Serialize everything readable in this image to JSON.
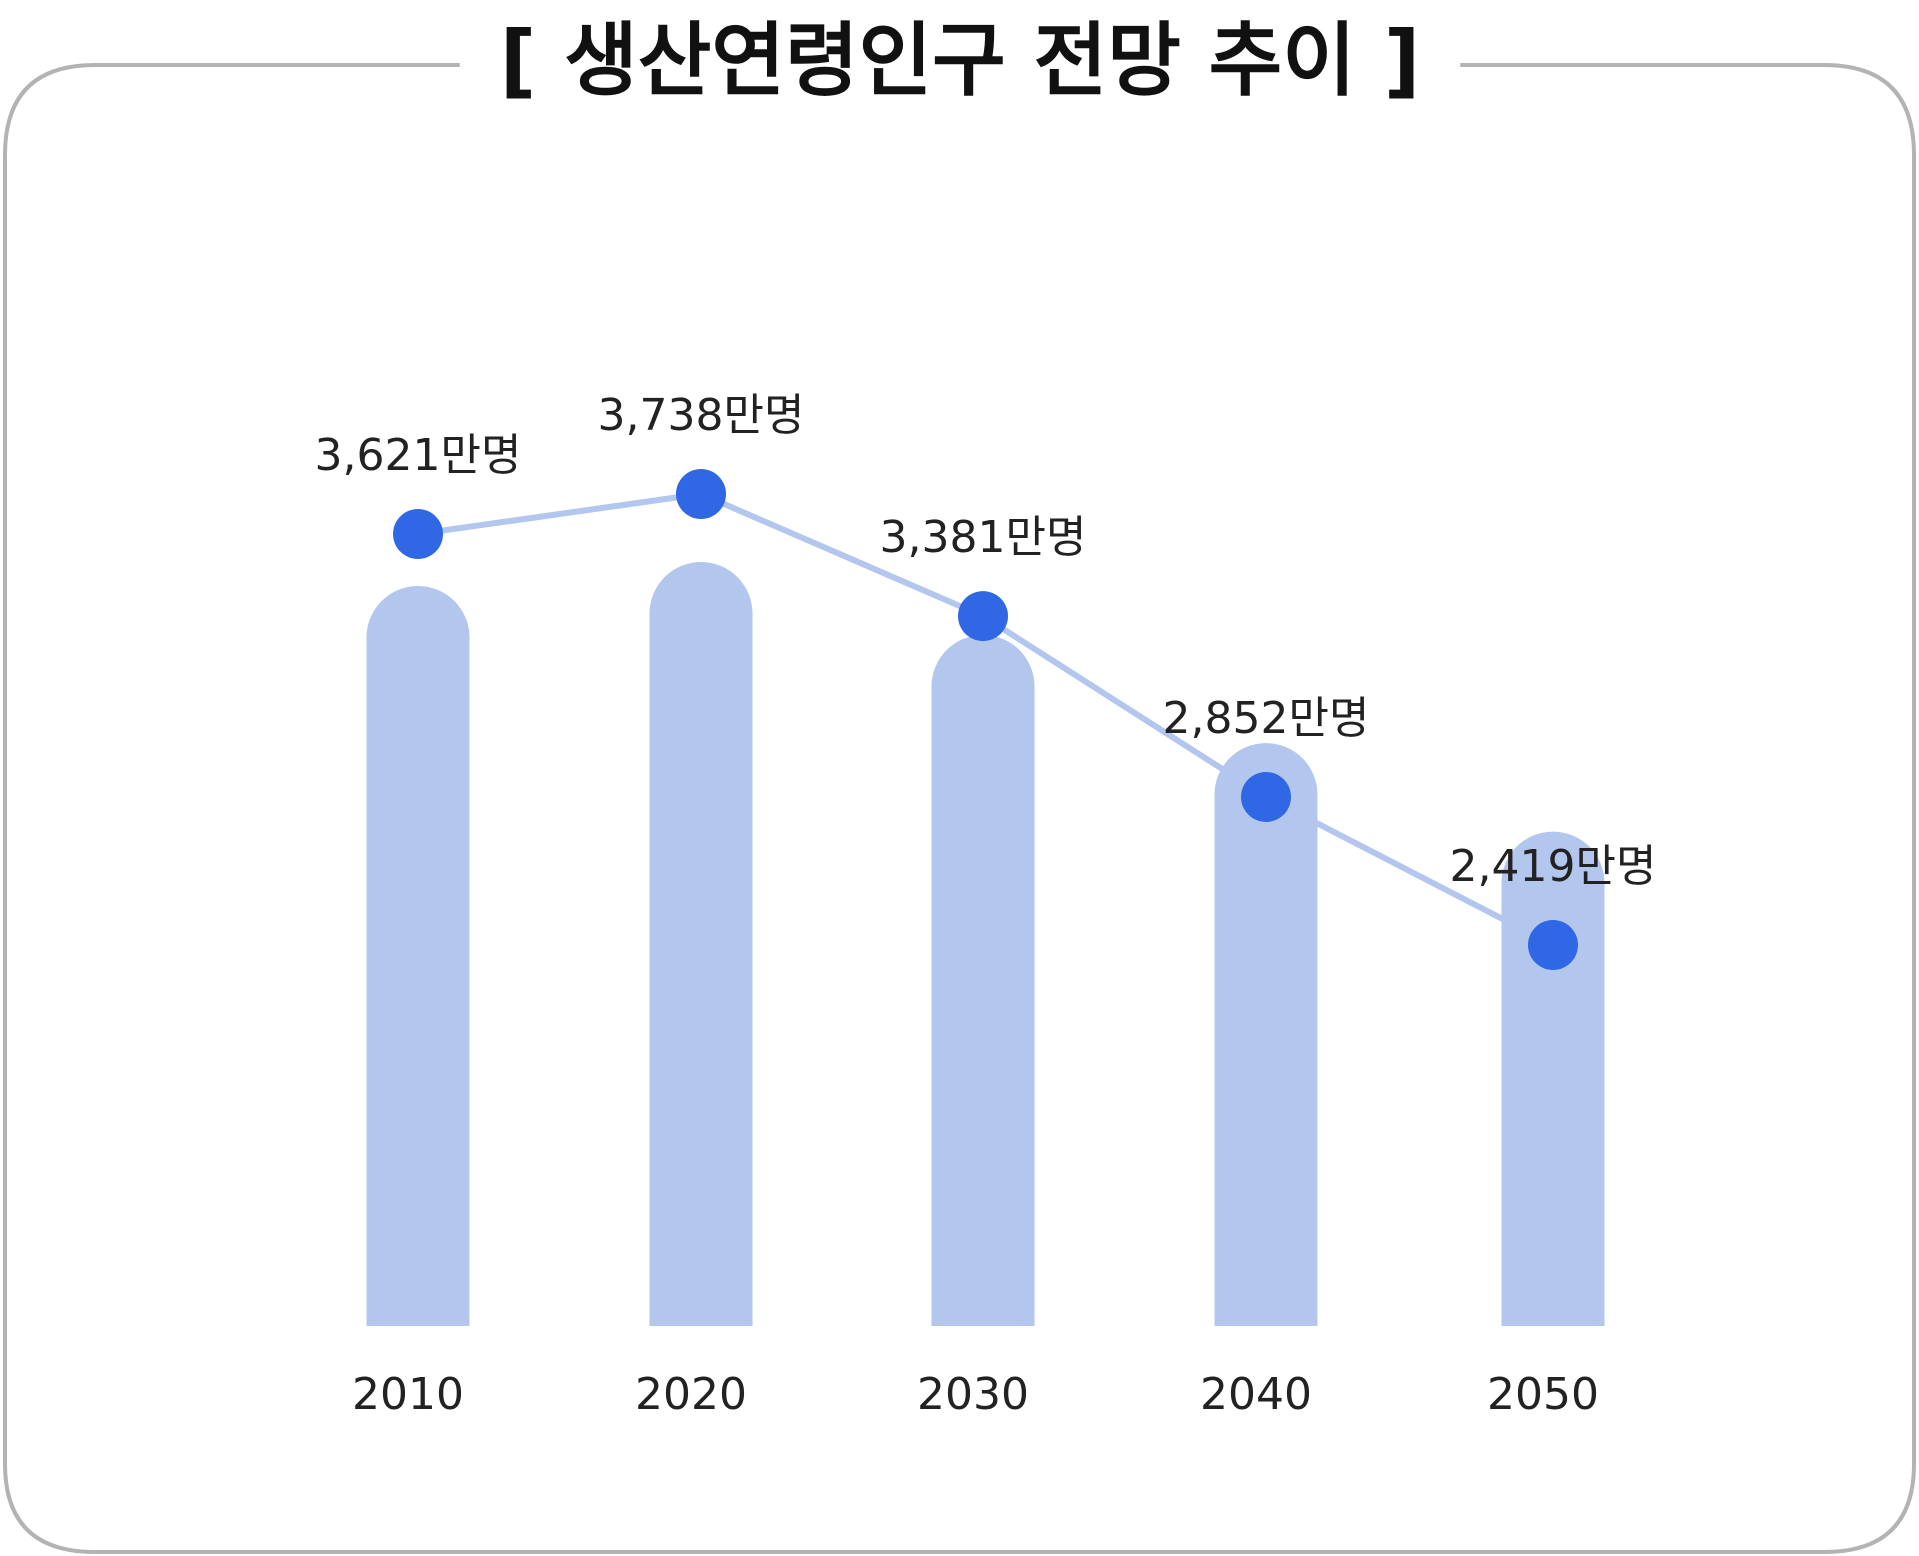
{
  "chart_data": {
    "type": "bar",
    "title": "[ 생산연령인구 전망 추이 ]",
    "categories": [
      "2010",
      "2020",
      "2030",
      "2040",
      "2050"
    ],
    "values": [
      3621,
      3738,
      3381,
      2852,
      2419
    ],
    "value_labels": [
      "3,621만명",
      "3,738만명",
      "3,381만명",
      "2,852만명",
      "2,419만명"
    ],
    "unit": "만명",
    "overlay": "line with markers connecting bar values",
    "xlabel": "",
    "ylabel": "",
    "ylim": [
      0,
      3738
    ],
    "grid": false,
    "colors": {
      "bar": "#b3c6ee",
      "line": "#b3c6ee",
      "marker": "#2f67e4",
      "frame": "#b3b3b3",
      "text": "#222222"
    }
  }
}
